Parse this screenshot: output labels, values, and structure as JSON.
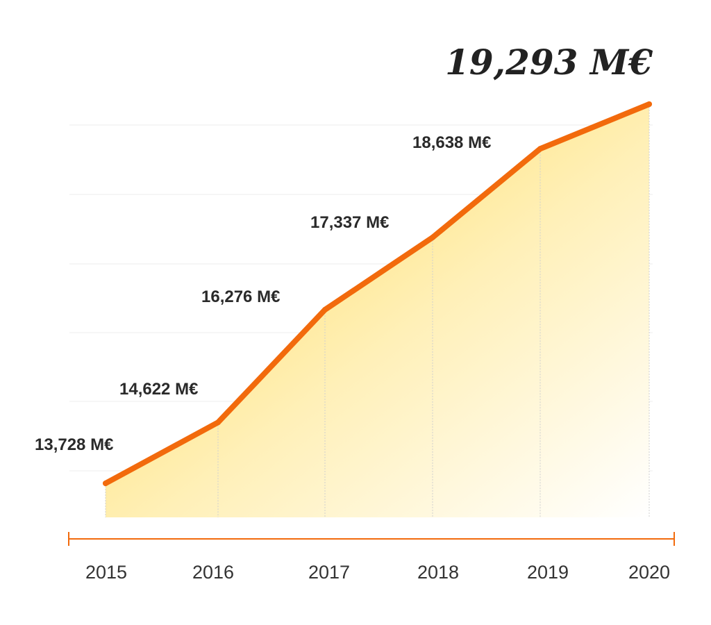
{
  "chart_data": {
    "type": "area",
    "title": "",
    "xlabel": "",
    "ylabel": "",
    "unit": "M€",
    "categories": [
      "2015",
      "2016",
      "2017",
      "2018",
      "2019",
      "2020"
    ],
    "values": [
      13728,
      14622,
      16276,
      17337,
      18638,
      19293
    ],
    "data_labels": [
      "13,728 M€",
      "14,622 M€",
      "16,276 M€",
      "17,337 M€",
      "18,638 M€",
      "19,293 M€"
    ],
    "highlight_last": true,
    "ylim": [
      13250,
      20100
    ],
    "grid": true,
    "legend": "none",
    "colors": {
      "line": "#f26a0c",
      "fill_start": "#ffd84a",
      "fill_end": "#ffffff",
      "axis": "#f26a0c",
      "grid": "#ededed"
    }
  }
}
